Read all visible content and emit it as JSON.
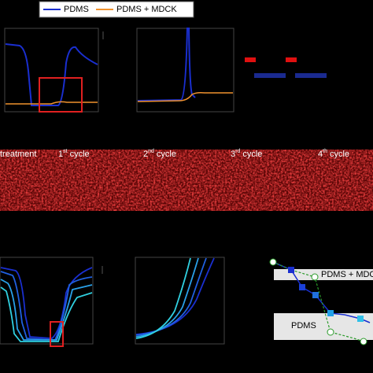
{
  "legend": {
    "items": [
      "PDMS",
      "PDMS + MDCK"
    ]
  },
  "strip": {
    "labels": [
      {
        "text": "treatment"
      },
      {
        "num": "1",
        "sup": "st",
        "text": "cycle"
      },
      {
        "num": "2",
        "sup": "nd",
        "text": "cycle"
      },
      {
        "num": "3",
        "sup": "rd",
        "text": "cycle"
      },
      {
        "num": "4",
        "sup": "th",
        "text": "cycle"
      }
    ]
  },
  "summary": {
    "bands": [
      "PDMS + MDC",
      "PDMS"
    ]
  }
}
